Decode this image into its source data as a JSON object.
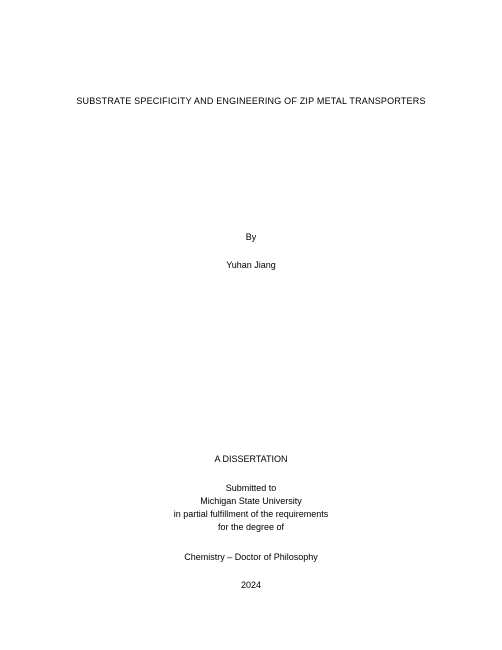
{
  "title": "SUBSTRATE SPECIFICITY AND ENGINEERING OF ZIP METAL TRANSPORTERS",
  "by_label": "By",
  "author": "Yuhan Jiang",
  "dissertation_label": "A DISSERTATION",
  "submitted_to": "Submitted to",
  "institution": "Michigan State University",
  "fulfillment": "in partial fulfillment of the requirements",
  "for_degree": "for the degree of",
  "degree": "Chemistry – Doctor of Philosophy",
  "year": "2024",
  "colors": {
    "background": "#ffffff",
    "text": "#000000"
  },
  "typography": {
    "font_family": "Arial",
    "title_fontsize": 9,
    "body_fontsize": 9
  }
}
